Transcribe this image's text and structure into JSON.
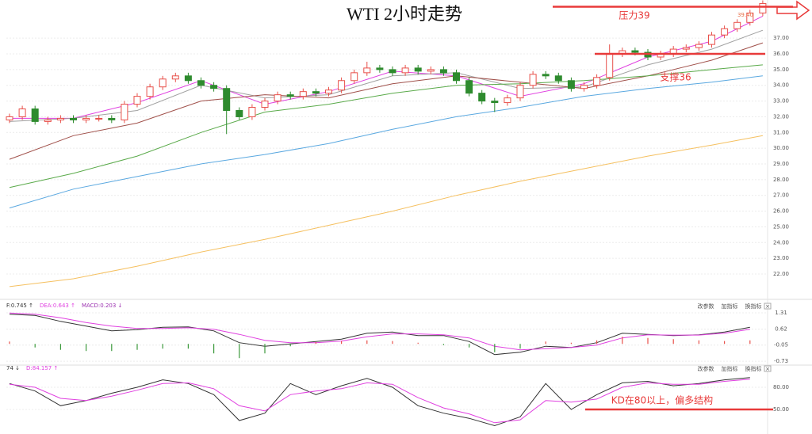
{
  "chart_data": [
    {
      "type": "candlestick",
      "title": "WTI 2小时走势",
      "open": [
        31.8,
        32.0,
        32.5,
        31.7,
        31.8,
        31.9,
        31.8,
        31.9,
        31.9,
        31.8,
        32.8,
        33.3,
        33.9,
        34.4,
        34.6,
        34.3,
        34.0,
        33.8,
        32.4,
        32.0,
        32.6,
        33.0,
        33.4,
        33.3,
        33.6,
        33.5,
        33.7,
        34.3,
        34.8,
        35.1,
        35.0,
        34.8,
        35.1,
        34.9,
        35.0,
        34.8,
        34.3,
        33.5,
        33.0,
        32.9,
        33.2,
        34.0,
        34.7,
        34.6,
        34.3,
        33.8,
        34.0,
        34.5,
        36.0,
        36.2,
        36.1,
        35.8,
        36.0,
        36.3,
        36.4,
        36.6,
        37.2,
        37.6,
        38.0,
        38.6
      ],
      "high": [
        32.2,
        32.7,
        32.7,
        32.0,
        32.1,
        32.1,
        32.1,
        32.1,
        32.1,
        33.0,
        33.5,
        34.1,
        34.6,
        34.8,
        34.8,
        34.5,
        34.2,
        34.0,
        32.6,
        32.8,
        33.2,
        33.6,
        33.6,
        33.8,
        33.8,
        33.9,
        34.5,
        35.0,
        35.5,
        35.3,
        35.2,
        35.3,
        35.3,
        35.2,
        35.2,
        35.0,
        34.5,
        33.7,
        33.2,
        33.4,
        34.2,
        34.9,
        34.9,
        34.8,
        34.5,
        34.2,
        34.7,
        36.6,
        36.4,
        36.4,
        36.3,
        36.2,
        36.5,
        36.6,
        36.8,
        37.4,
        37.8,
        38.2,
        38.8,
        39.4
      ],
      "low": [
        31.6,
        31.8,
        31.5,
        31.5,
        31.6,
        31.6,
        31.6,
        31.7,
        31.6,
        31.6,
        32.6,
        33.1,
        33.7,
        34.2,
        34.1,
        33.8,
        33.6,
        30.9,
        31.8,
        31.8,
        32.4,
        32.8,
        33.1,
        33.1,
        33.3,
        33.3,
        33.5,
        34.1,
        34.6,
        34.8,
        34.6,
        34.6,
        34.7,
        34.7,
        34.6,
        34.1,
        33.3,
        32.8,
        32.3,
        32.7,
        33.0,
        33.8,
        34.4,
        34.1,
        33.6,
        33.6,
        33.8,
        34.3,
        35.8,
        35.9,
        35.6,
        35.6,
        35.8,
        36.1,
        36.2,
        36.4,
        37.0,
        37.4,
        37.8,
        38.4
      ],
      "close": [
        32.0,
        32.5,
        31.7,
        31.8,
        31.9,
        31.8,
        31.9,
        31.9,
        31.8,
        32.8,
        33.3,
        33.9,
        34.4,
        34.6,
        34.3,
        34.0,
        33.8,
        32.4,
        32.0,
        32.6,
        33.0,
        33.4,
        33.3,
        33.6,
        33.5,
        33.7,
        34.3,
        34.8,
        35.1,
        35.0,
        34.8,
        35.1,
        34.9,
        35.0,
        34.8,
        34.3,
        33.5,
        33.0,
        32.9,
        33.2,
        34.0,
        34.7,
        34.6,
        34.3,
        33.8,
        34.0,
        34.5,
        36.0,
        36.2,
        36.1,
        35.8,
        36.0,
        36.3,
        36.4,
        36.6,
        37.2,
        37.6,
        38.0,
        38.6,
        39.2
      ],
      "up_color": "#e8504a",
      "down_color": "#2e8b2e",
      "series": [
        {
          "color": "#e040e0",
          "x": [
            0,
            5,
            10,
            15,
            20,
            25,
            30,
            35,
            40,
            45,
            50,
            55,
            59
          ],
          "values": [
            31.9,
            31.9,
            32.9,
            34.3,
            32.8,
            33.6,
            34.9,
            34.6,
            33.3,
            34.1,
            35.8,
            36.8,
            38.4
          ]
        },
        {
          "color": "#a0a0a0",
          "x": [
            0,
            5,
            10,
            15,
            20,
            25,
            30,
            35,
            40,
            45,
            50,
            55,
            59
          ],
          "values": [
            31.7,
            31.9,
            32.4,
            34.0,
            33.2,
            33.4,
            34.6,
            34.8,
            33.8,
            33.9,
            35.3,
            36.3,
            37.5
          ]
        },
        {
          "color": "#a0504a",
          "x": [
            0,
            5,
            10,
            15,
            20,
            25,
            30,
            35,
            40,
            45,
            50,
            55,
            59
          ],
          "values": [
            29.3,
            30.8,
            31.6,
            33.0,
            33.4,
            33.2,
            34.1,
            34.6,
            34.2,
            33.8,
            34.6,
            35.6,
            36.7
          ]
        },
        {
          "color": "#5aaa4a",
          "x": [
            0,
            5,
            10,
            15,
            20,
            25,
            30,
            35,
            40,
            45,
            50,
            55,
            59
          ],
          "values": [
            27.5,
            28.4,
            29.5,
            31.0,
            32.3,
            32.8,
            33.5,
            34.0,
            34.1,
            34.3,
            34.6,
            35.0,
            35.3
          ]
        },
        {
          "color": "#5aa8e0",
          "x": [
            0,
            5,
            10,
            15,
            20,
            25,
            30,
            35,
            40,
            45,
            50,
            55,
            59
          ],
          "values": [
            26.2,
            27.4,
            28.2,
            29.0,
            29.6,
            30.3,
            31.2,
            32.0,
            32.6,
            33.3,
            33.8,
            34.2,
            34.6
          ]
        },
        {
          "color": "#f5c060",
          "x": [
            0,
            5,
            10,
            15,
            20,
            25,
            30,
            35,
            40,
            45,
            50,
            55,
            59
          ],
          "values": [
            21.2,
            21.7,
            22.5,
            23.4,
            24.2,
            25.1,
            26.0,
            27.0,
            27.9,
            28.7,
            29.5,
            30.2,
            30.8
          ]
        }
      ],
      "high_label": {
        "value": 39.4,
        "label": "39.40"
      },
      "annotations": [
        {
          "text": "压力39",
          "value": 39,
          "color": "#e83a3a"
        },
        {
          "text": "支撑36",
          "value": 36,
          "color": "#e83a3a"
        }
      ],
      "ylim": [
        20.54,
        38.67
      ],
      "yticks": [
        {
          "value": 22,
          "label": "22.00"
        },
        {
          "value": 23,
          "label": "23.00"
        },
        {
          "value": 24,
          "label": "24.00"
        },
        {
          "value": 25,
          "label": "25.00"
        },
        {
          "value": 26,
          "label": "26.00"
        },
        {
          "value": 27,
          "label": "27.00"
        },
        {
          "value": 28,
          "label": "28.00"
        },
        {
          "value": 29,
          "label": "29.00"
        },
        {
          "value": 30,
          "label": "30.00"
        },
        {
          "value": 31,
          "label": "31.00"
        },
        {
          "value": 32,
          "label": "32.00"
        },
        {
          "value": 33,
          "label": "33.00"
        },
        {
          "value": 34,
          "label": "34.00"
        },
        {
          "value": 35,
          "label": "35.00"
        },
        {
          "value": 36,
          "label": "36.00"
        },
        {
          "value": 37,
          "label": "37.00"
        }
      ],
      "grid": true
    },
    {
      "type": "line",
      "series": [
        {
          "name": "F:0.745 ↑",
          "color": "#333333",
          "x": [
            0,
            2,
            4,
            6,
            8,
            10,
            12,
            14,
            16,
            18,
            20,
            22,
            24,
            26,
            28,
            30,
            32,
            34,
            36,
            38,
            40,
            42,
            44,
            46,
            48,
            50,
            52,
            54,
            56,
            58
          ],
          "values": [
            1.25,
            1.2,
            0.95,
            0.75,
            0.55,
            0.6,
            0.7,
            0.72,
            0.55,
            0.05,
            -0.1,
            0.0,
            0.1,
            0.2,
            0.45,
            0.5,
            0.35,
            0.35,
            0.1,
            -0.45,
            -0.35,
            -0.1,
            -0.15,
            0.05,
            0.45,
            0.4,
            0.35,
            0.38,
            0.5,
            0.7
          ]
        },
        {
          "name": "DEA:0.643 ↑",
          "color": "#e040e0",
          "x": [
            0,
            2,
            4,
            6,
            8,
            10,
            12,
            14,
            16,
            18,
            20,
            22,
            24,
            26,
            28,
            30,
            32,
            34,
            36,
            38,
            40,
            42,
            44,
            46,
            48,
            50,
            52,
            54,
            56,
            58
          ],
          "values": [
            1.3,
            1.25,
            1.1,
            0.9,
            0.75,
            0.65,
            0.65,
            0.68,
            0.62,
            0.4,
            0.15,
            0.05,
            0.05,
            0.12,
            0.3,
            0.42,
            0.42,
            0.38,
            0.25,
            -0.1,
            -0.25,
            -0.2,
            -0.15,
            -0.05,
            0.25,
            0.38,
            0.37,
            0.37,
            0.45,
            0.62
          ]
        },
        {
          "name": "MACD:0.203 ↓",
          "type": "bar",
          "color": "#9b30b0",
          "up_color": "#e8504a",
          "down_color": "#3c9a3c",
          "x": [
            0,
            2,
            4,
            6,
            8,
            10,
            12,
            14,
            16,
            18,
            20,
            22,
            24,
            26,
            28,
            30,
            32,
            34,
            36,
            38,
            40,
            42,
            44,
            46,
            48,
            50,
            52,
            54,
            56,
            58
          ],
          "values": [
            0.1,
            -0.15,
            -0.25,
            -0.3,
            -0.3,
            -0.25,
            -0.2,
            -0.2,
            -0.4,
            -0.6,
            -0.4,
            -0.1,
            0.08,
            0.12,
            0.15,
            0.12,
            0.05,
            -0.05,
            -0.15,
            -0.35,
            -0.2,
            0.1,
            0.05,
            0.15,
            0.3,
            0.25,
            0.2,
            0.15,
            0.12,
            0.15
          ]
        }
      ],
      "buttons": [
        "改参数",
        "加指标",
        "换指标",
        "×"
      ],
      "ylim": [
        -0.86,
        1.71
      ],
      "yticks": [
        -0.73,
        -0.05,
        0.62,
        1.31
      ],
      "grid": true
    },
    {
      "type": "line",
      "series": [
        {
          "name": "74 ↓",
          "color": "#333333",
          "x": [
            0,
            2,
            4,
            6,
            8,
            10,
            12,
            14,
            16,
            18,
            20,
            22,
            24,
            26,
            28,
            30,
            32,
            34,
            36,
            38,
            40,
            42,
            44,
            46,
            48,
            50,
            52,
            54,
            56,
            58
          ],
          "values": [
            85,
            75,
            55,
            62,
            72,
            80,
            90,
            85,
            70,
            35,
            45,
            85,
            70,
            82,
            92,
            80,
            55,
            45,
            38,
            28,
            40,
            85,
            50,
            70,
            86,
            88,
            82,
            85,
            90,
            93
          ]
        },
        {
          "name": "D:84.157 ↑",
          "color": "#e040e0",
          "x": [
            0,
            2,
            4,
            6,
            8,
            10,
            12,
            14,
            16,
            18,
            20,
            22,
            24,
            26,
            28,
            30,
            32,
            34,
            36,
            38,
            40,
            42,
            44,
            46,
            48,
            50,
            52,
            54,
            56,
            58
          ],
          "values": [
            84,
            80,
            65,
            62,
            68,
            76,
            85,
            86,
            78,
            55,
            48,
            70,
            75,
            78,
            86,
            84,
            66,
            52,
            44,
            32,
            36,
            62,
            60,
            64,
            80,
            86,
            84,
            84,
            88,
            91
          ]
        }
      ],
      "buttons": [
        "改参数",
        "加指标",
        "换指标",
        "×"
      ],
      "annotations": [
        {
          "text": "KD在80以上，偏多结构",
          "value": 50,
          "color": "#e83a3a"
        }
      ],
      "ylim": [
        20,
        108.9
      ],
      "yticks": [
        {
          "value": 50,
          "label": "50.00"
        },
        {
          "value": 80,
          "label": "80.00"
        }
      ],
      "grid": true
    }
  ]
}
